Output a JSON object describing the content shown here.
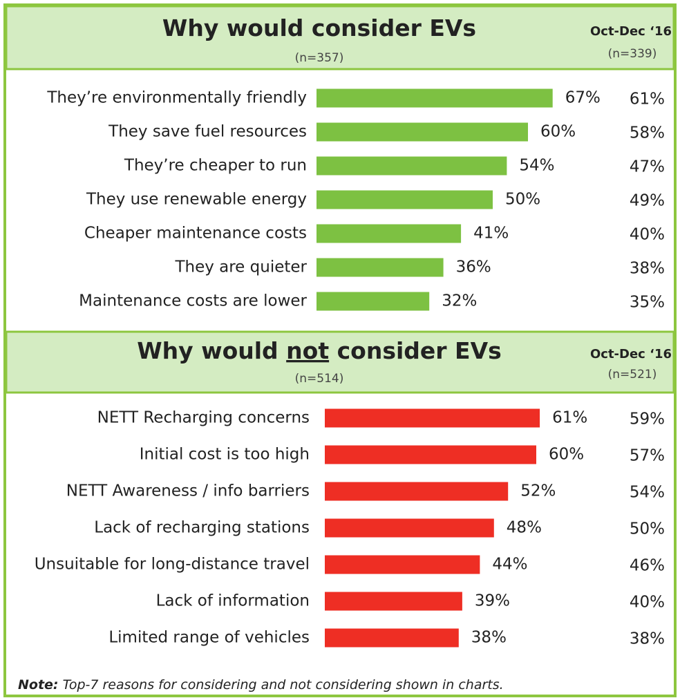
{
  "chart_data": [
    {
      "type": "bar",
      "orientation": "horizontal",
      "title_parts": [
        "Why would consider EVs"
      ],
      "underline": null,
      "subtitle": "(n=357)",
      "comparison": {
        "title": "Oct-Dec ‘16",
        "subtitle": "(n=339)",
        "labels": [
          "61%",
          "58%",
          "47%",
          "49%",
          "40%",
          "38%",
          "35%"
        ]
      },
      "categories": [
        "They’re environmentally friendly",
        "They save fuel resources",
        "They’re cheaper to run",
        "They use renewable energy",
        "Cheaper maintenance costs",
        "They are quieter",
        "Maintenance costs are lower"
      ],
      "values": [
        67,
        60,
        54,
        50,
        41,
        36,
        32
      ],
      "value_labels": [
        "67%",
        "60%",
        "54%",
        "50%",
        "41%",
        "36%",
        "32%"
      ],
      "color": "#7dc142",
      "xlim": [
        0,
        100
      ]
    },
    {
      "type": "bar",
      "orientation": "horizontal",
      "title_parts": [
        "Why would ",
        "not",
        " consider EVs"
      ],
      "underline": 1,
      "subtitle": "(n=514)",
      "comparison": {
        "title": "Oct-Dec ‘16",
        "subtitle": "(n=521)",
        "labels": [
          "59%",
          "57%",
          "54%",
          "50%",
          "46%",
          "40%",
          "38%"
        ]
      },
      "categories": [
        "NETT Recharging concerns",
        "Initial cost is too high",
        "NETT Awareness / info barriers",
        "Lack of recharging stations",
        "Unsuitable for long-distance travel",
        "Lack of information",
        "Limited range of vehicles"
      ],
      "values": [
        61,
        60,
        52,
        48,
        44,
        39,
        38
      ],
      "value_labels": [
        "61%",
        "60%",
        "52%",
        "48%",
        "44%",
        "39%",
        "38%"
      ],
      "color": "#ee2e24",
      "xlim": [
        0,
        100
      ]
    }
  ],
  "note": {
    "label": "Note:",
    "text": " Top-7 reasons for considering and not considering shown in charts."
  }
}
